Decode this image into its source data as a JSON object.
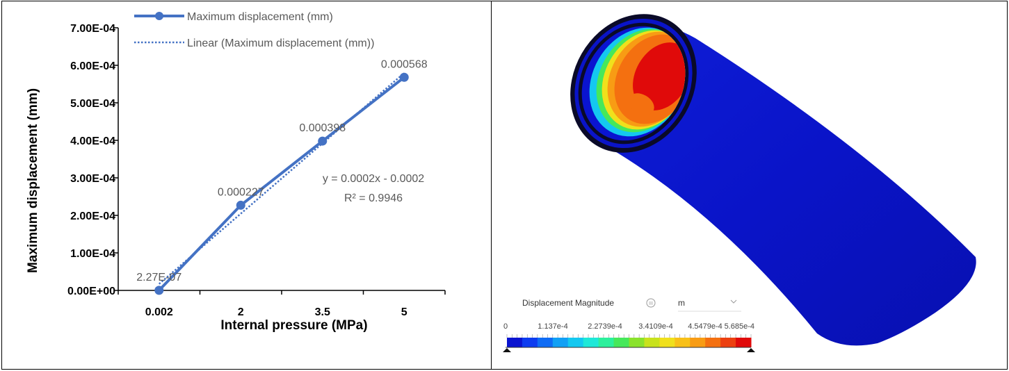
{
  "chart_data": {
    "type": "line",
    "categories": [
      "0.002",
      "2",
      "3.5",
      "5"
    ],
    "series": [
      {
        "name": "Maximum displacement (mm)",
        "values": [
          2.27e-07,
          0.000227,
          0.000398,
          0.000568
        ],
        "data_labels": [
          "2.27E-07",
          "0.000227",
          "0.000398",
          "0.000568"
        ],
        "color": "#4472C4"
      }
    ],
    "trendline": {
      "name": "Linear (Maximum displacement (mm))",
      "type": "linear",
      "equation": "y = 0.0002x - 0.0002",
      "r_squared": "R² = 0.9946",
      "color": "#4472C4"
    },
    "xlabel": "Internal pressure (MPa)",
    "ylabel": "Maximum displacement (mm)",
    "ylim": [
      0,
      0.0007
    ],
    "yticks": [
      0,
      0.0001,
      0.0002,
      0.0003,
      0.0004,
      0.0005,
      0.0006,
      0.0007
    ],
    "ytick_labels": [
      "0.00E+00",
      "1.00E-04",
      "2.00E-04",
      "3.00E-04",
      "4.00E-04",
      "5.00E-04",
      "6.00E-04",
      "7.00E-04"
    ],
    "grid": false,
    "legend_position": "top"
  },
  "simulation": {
    "colorbar_title": "Displacement Magnitude",
    "unit": "m",
    "tick_labels": [
      "0",
      "1.137e-4",
      "2.2739e-4",
      "3.4109e-4",
      "4.5479e-4",
      "5.685e-4"
    ],
    "colors": [
      "#0a14d0",
      "#0d3cf0",
      "#0f6cf5",
      "#11a0f5",
      "#14c8f0",
      "#1ee8d8",
      "#2cf09c",
      "#46e85a",
      "#8ae22c",
      "#c8e21c",
      "#f0e01c",
      "#f8c018",
      "#f89c14",
      "#f47010",
      "#ec4010",
      "#e00a0a"
    ],
    "pipe_color": "#0a14c8"
  }
}
